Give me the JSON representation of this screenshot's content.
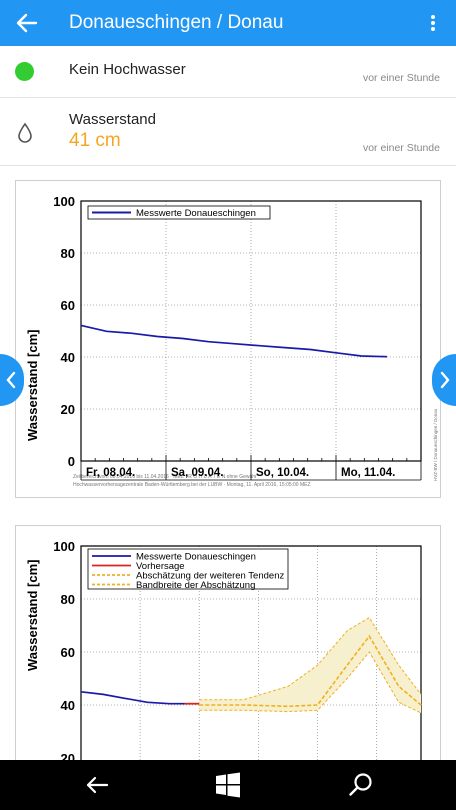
{
  "header": {
    "title": "Donaueschingen / Donau",
    "back_icon": "arrow-left-icon",
    "menu_icon": "more-vertical-icon",
    "color": "#2196f3"
  },
  "status": {
    "label": "Kein Hochwasser",
    "time": "vor einer Stunde",
    "indicator_color": "#33cc33"
  },
  "waterlevel": {
    "label": "Wasserstand",
    "value": "41 cm",
    "time": "vor einer Stunde",
    "icon": "water-drop-icon",
    "value_color": "#f5a623"
  },
  "chart_data": [
    {
      "type": "line",
      "ylabel": "Wasserstand [cm]",
      "ylim": [
        0,
        100
      ],
      "yticks": [
        "0",
        "20",
        "40",
        "60",
        "80",
        "100"
      ],
      "xticks": [
        "Fr, 08.04.",
        "Sa, 09.04.",
        "So, 10.04.",
        "Mo, 11.04."
      ],
      "legend": "top-left",
      "grid": true,
      "series": [
        {
          "name": "Messwerte Donaueschingen",
          "color": "#1a1aa8",
          "x": [
            0,
            0.3,
            0.6,
            0.9,
            1.2,
            1.5,
            1.8,
            2.1,
            2.4,
            2.7,
            3.0,
            3.3,
            3.6
          ],
          "y": [
            52,
            50,
            49,
            48,
            47,
            46,
            45,
            44.5,
            43.5,
            43,
            41.5,
            40.5,
            40
          ]
        }
      ],
      "footer_line1": "Zeitbereich vom 08.04.2016 bis 11.04.2016 · MEZ · R O H D A T E N ohne Gewähr",
      "footer_line2": "Hochwasservorhersagezentrale Baden-Württemberg bei der LUBW · Montag, 11. April 2016, 15:05:00 MEZ",
      "side_note": "HVZ-BW / Donaueschingen / Donau"
    },
    {
      "type": "line",
      "ylabel": "Wasserstand [cm]",
      "ylim": [
        20,
        100
      ],
      "yticks": [
        "20",
        "40",
        "60",
        "80",
        "100"
      ],
      "legend": "top-left",
      "grid": true,
      "series": [
        {
          "name": "Messwerte Donaueschingen",
          "color": "#1a1aa8",
          "x": [
            0,
            0.3,
            0.6,
            0.9,
            1.2,
            1.4
          ],
          "y": [
            45,
            44,
            42.5,
            41,
            40.5,
            40.5
          ]
        },
        {
          "name": "Vorhersage",
          "color": "#dd2222",
          "x": [
            1.4,
            1.6
          ],
          "y": [
            40.5,
            40.5
          ]
        },
        {
          "name": "Abschätzung der weiteren Tendenz",
          "color": "#f0b020",
          "x": [
            1.6,
            2.2,
            2.8,
            3.2,
            3.6,
            3.9,
            4.3,
            4.6
          ],
          "y": [
            40,
            40,
            39.5,
            40,
            55,
            66,
            47,
            40
          ]
        },
        {
          "name": "Bandbreite der Abschätzung",
          "color": "#f0b020",
          "x": [
            1.6,
            2.2,
            2.8,
            3.2,
            3.6,
            3.9,
            4.3,
            4.6
          ],
          "y_upper": [
            42,
            42,
            47,
            55,
            68,
            73,
            55,
            44
          ],
          "y_lower": [
            38,
            38,
            37.5,
            38,
            50,
            60,
            41,
            37
          ]
        }
      ]
    }
  ],
  "nav": {
    "left_icon": "chevron-left-icon",
    "right_icon": "chevron-right-icon"
  },
  "system_bar": {
    "back_icon": "back-arrow-icon",
    "home_icon": "windows-logo-icon",
    "search_icon": "search-icon"
  }
}
